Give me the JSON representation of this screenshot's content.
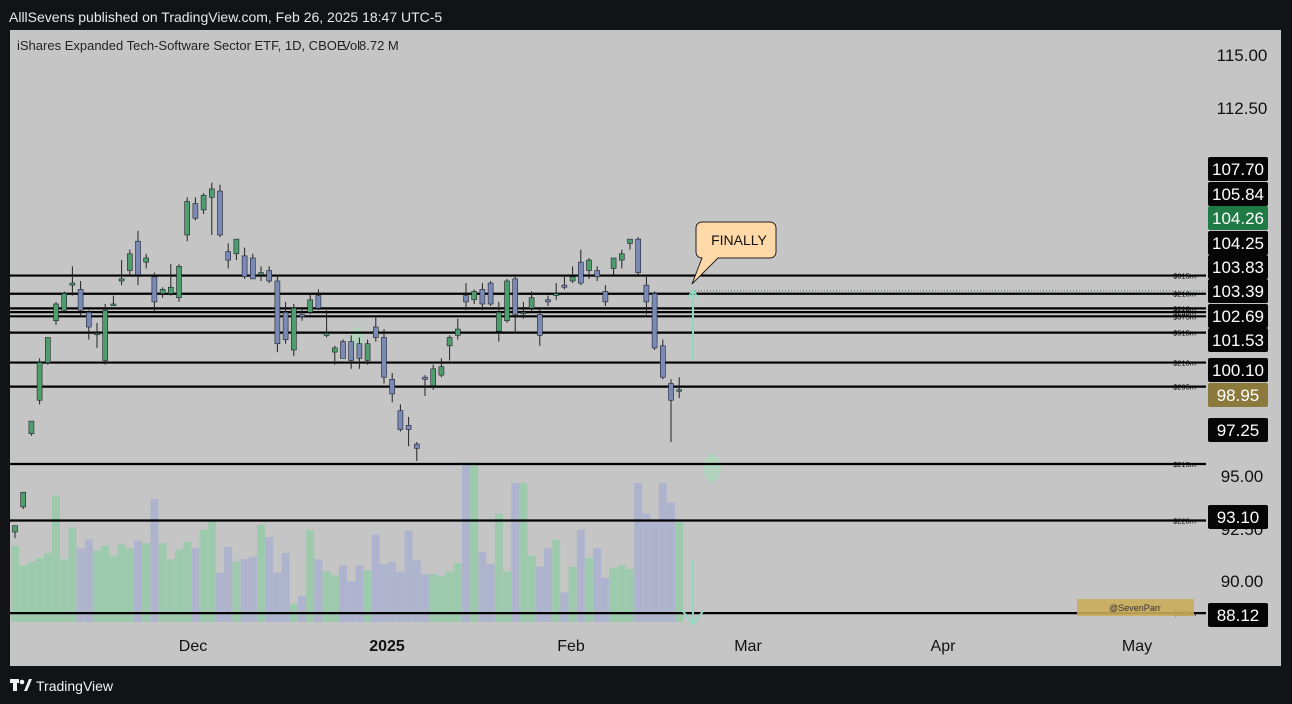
{
  "header": {
    "publish_line": "AlllSevens published on TradingView.com, Feb 26, 2025 18:47 UTC-5"
  },
  "footer": {
    "brand": "TradingView"
  },
  "chart_data": {
    "type": "candlestick",
    "title": "iShares Expanded Tech-Software Sector ETF, 1D, CBOE",
    "volume_label": "Vol",
    "volume_value": "8.72 M",
    "y_range": [
      87.6,
      116.0
    ],
    "x_tick_labels": [
      "Dec",
      "2025",
      "Feb",
      "Mar",
      "Apr",
      "May"
    ],
    "y_tick_labels": [
      "115.00",
      "112.50",
      "95.00",
      "92.50",
      "90.00"
    ],
    "candles": [
      {
        "o": 92.0,
        "h": 92.3,
        "l": 91.7,
        "c": 92.3
      },
      {
        "o": 93.2,
        "h": 93.9,
        "l": 93.1,
        "c": 93.9
      },
      {
        "o": 96.7,
        "h": 97.3,
        "l": 96.6,
        "c": 97.3
      },
      {
        "o": 98.3,
        "h": 100.3,
        "l": 98.1,
        "c": 100.1
      },
      {
        "o": 100.1,
        "h": 101.3,
        "l": 100.0,
        "c": 101.3
      },
      {
        "o": 102.1,
        "h": 103.0,
        "l": 101.9,
        "c": 102.9
      },
      {
        "o": 102.6,
        "h": 103.5,
        "l": 102.5,
        "c": 103.4
      },
      {
        "o": 103.8,
        "h": 104.7,
        "l": 103.3,
        "c": 103.9
      },
      {
        "o": 103.6,
        "h": 104.0,
        "l": 102.3,
        "c": 102.6
      },
      {
        "o": 102.5,
        "h": 102.6,
        "l": 101.2,
        "c": 101.8
      },
      {
        "o": 101.5,
        "h": 102.0,
        "l": 100.8,
        "c": 101.5
      },
      {
        "o": 100.2,
        "h": 102.9,
        "l": 100.0,
        "c": 102.6
      },
      {
        "o": 102.9,
        "h": 103.3,
        "l": 102.8,
        "c": 102.9
      },
      {
        "o": 104.0,
        "h": 105.0,
        "l": 103.8,
        "c": 104.1
      },
      {
        "o": 104.5,
        "h": 105.5,
        "l": 104.2,
        "c": 105.3
      },
      {
        "o": 105.9,
        "h": 106.4,
        "l": 103.8,
        "c": 104.3
      },
      {
        "o": 104.9,
        "h": 105.3,
        "l": 104.6,
        "c": 105.1
      },
      {
        "o": 104.2,
        "h": 104.4,
        "l": 102.5,
        "c": 103.0
      },
      {
        "o": 103.4,
        "h": 103.7,
        "l": 103.2,
        "c": 103.6
      },
      {
        "o": 103.4,
        "h": 104.8,
        "l": 103.3,
        "c": 103.7
      },
      {
        "o": 103.2,
        "h": 104.8,
        "l": 103.0,
        "c": 104.7
      },
      {
        "o": 106.2,
        "h": 108.0,
        "l": 105.9,
        "c": 107.8
      },
      {
        "o": 107.7,
        "h": 108.0,
        "l": 106.9,
        "c": 107.0
      },
      {
        "o": 107.4,
        "h": 108.2,
        "l": 107.2,
        "c": 108.1
      },
      {
        "o": 108.0,
        "h": 108.7,
        "l": 106.2,
        "c": 108.4
      },
      {
        "o": 108.3,
        "h": 108.6,
        "l": 106.1,
        "c": 106.2
      },
      {
        "o": 105.4,
        "h": 105.8,
        "l": 104.6,
        "c": 105.0
      },
      {
        "o": 105.3,
        "h": 106.0,
        "l": 105.0,
        "c": 106.0
      },
      {
        "o": 105.2,
        "h": 105.6,
        "l": 104.1,
        "c": 104.2
      },
      {
        "o": 105.1,
        "h": 105.3,
        "l": 104.1,
        "c": 104.1
      },
      {
        "o": 104.3,
        "h": 104.7,
        "l": 104.0,
        "c": 104.4
      },
      {
        "o": 104.5,
        "h": 104.7,
        "l": 103.9,
        "c": 104.0
      },
      {
        "o": 104.0,
        "h": 104.3,
        "l": 100.6,
        "c": 101.0
      },
      {
        "o": 102.5,
        "h": 103.0,
        "l": 101.0,
        "c": 101.2
      },
      {
        "o": 100.7,
        "h": 102.9,
        "l": 100.4,
        "c": 102.7
      },
      {
        "o": 102.4,
        "h": 102.7,
        "l": 102.1,
        "c": 102.3
      },
      {
        "o": 102.5,
        "h": 103.4,
        "l": 102.4,
        "c": 103.1
      },
      {
        "o": 103.3,
        "h": 103.6,
        "l": 102.6,
        "c": 102.7
      },
      {
        "o": 101.4,
        "h": 102.6,
        "l": 101.3,
        "c": 101.5
      },
      {
        "o": 100.6,
        "h": 100.9,
        "l": 100.0,
        "c": 100.8
      },
      {
        "o": 101.1,
        "h": 101.2,
        "l": 100.3,
        "c": 100.3
      },
      {
        "o": 101.1,
        "h": 101.4,
        "l": 99.8,
        "c": 100.2
      },
      {
        "o": 101.0,
        "h": 101.3,
        "l": 99.8,
        "c": 100.3
      },
      {
        "o": 100.2,
        "h": 101.2,
        "l": 100.0,
        "c": 101.0
      },
      {
        "o": 101.8,
        "h": 102.3,
        "l": 101.1,
        "c": 101.3
      },
      {
        "o": 101.3,
        "h": 101.7,
        "l": 99.1,
        "c": 99.4
      },
      {
        "o": 99.3,
        "h": 99.6,
        "l": 98.2,
        "c": 98.6
      },
      {
        "o": 97.8,
        "h": 98.1,
        "l": 96.8,
        "c": 96.9
      },
      {
        "o": 97.1,
        "h": 97.5,
        "l": 96.1,
        "c": 96.9
      },
      {
        "o": 96.2,
        "h": 96.3,
        "l": 95.4,
        "c": 96.0
      },
      {
        "o": 99.4,
        "h": 99.5,
        "l": 98.5,
        "c": 99.3
      },
      {
        "o": 99.0,
        "h": 100.0,
        "l": 98.8,
        "c": 99.8
      },
      {
        "o": 99.5,
        "h": 100.3,
        "l": 99.4,
        "c": 99.9
      },
      {
        "o": 100.9,
        "h": 101.4,
        "l": 100.2,
        "c": 101.3
      },
      {
        "o": 101.4,
        "h": 102.2,
        "l": 101.2,
        "c": 101.7
      },
      {
        "o": 103.3,
        "h": 103.9,
        "l": 102.6,
        "c": 103.0
      },
      {
        "o": 103.1,
        "h": 103.6,
        "l": 102.9,
        "c": 103.5
      },
      {
        "o": 103.6,
        "h": 103.9,
        "l": 102.6,
        "c": 102.9
      },
      {
        "o": 103.9,
        "h": 104.0,
        "l": 102.8,
        "c": 102.9
      },
      {
        "o": 101.6,
        "h": 103.0,
        "l": 101.1,
        "c": 102.5
      },
      {
        "o": 102.1,
        "h": 104.1,
        "l": 102.0,
        "c": 104.0
      },
      {
        "o": 104.1,
        "h": 104.2,
        "l": 101.5,
        "c": 102.4
      },
      {
        "o": 102.5,
        "h": 103.0,
        "l": 102.2,
        "c": 102.5
      },
      {
        "o": 102.7,
        "h": 103.5,
        "l": 102.5,
        "c": 103.2
      },
      {
        "o": 102.4,
        "h": 102.7,
        "l": 100.9,
        "c": 101.4
      },
      {
        "o": 103.1,
        "h": 103.3,
        "l": 102.8,
        "c": 103.0
      },
      {
        "o": 103.3,
        "h": 103.9,
        "l": 103.1,
        "c": 103.4
      },
      {
        "o": 103.8,
        "h": 104.3,
        "l": 103.6,
        "c": 103.7
      },
      {
        "o": 104.0,
        "h": 104.7,
        "l": 103.9,
        "c": 104.2
      },
      {
        "o": 104.9,
        "h": 105.5,
        "l": 103.8,
        "c": 103.9
      },
      {
        "o": 104.5,
        "h": 105.1,
        "l": 104.1,
        "c": 105.0
      },
      {
        "o": 104.5,
        "h": 104.7,
        "l": 104.0,
        "c": 104.2
      },
      {
        "o": 103.5,
        "h": 103.8,
        "l": 102.8,
        "c": 103.0
      },
      {
        "o": 104.6,
        "h": 105.1,
        "l": 104.3,
        "c": 105.1
      },
      {
        "o": 105.0,
        "h": 105.5,
        "l": 104.6,
        "c": 105.3
      },
      {
        "o": 105.8,
        "h": 106.0,
        "l": 105.5,
        "c": 106.0
      },
      {
        "o": 106.0,
        "h": 106.1,
        "l": 104.3,
        "c": 104.4
      },
      {
        "o": 103.8,
        "h": 104.2,
        "l": 102.4,
        "c": 103.0
      },
      {
        "o": 103.4,
        "h": 103.5,
        "l": 100.7,
        "c": 100.8
      },
      {
        "o": 100.9,
        "h": 101.2,
        "l": 99.3,
        "c": 99.4
      },
      {
        "o": 99.1,
        "h": 99.3,
        "l": 96.3,
        "c": 98.3
      },
      {
        "o": 98.8,
        "h": 99.4,
        "l": 98.4,
        "c": 98.8
      }
    ],
    "volumes": [
      6.2,
      4.6,
      4.9,
      5.2,
      5.6,
      10.3,
      5.1,
      7.7,
      6.0,
      6.7,
      5.8,
      6.2,
      5.4,
      6.3,
      6.0,
      6.6,
      6.4,
      10.0,
      6.4,
      5.1,
      5.9,
      6.5,
      6.0,
      7.5,
      8.3,
      4.0,
      6.1,
      4.9,
      5.1,
      5.3,
      7.9,
      6.9,
      4.0,
      5.6,
      1.5,
      2.1,
      7.5,
      5.1,
      4.1,
      3.8,
      4.6,
      3.3,
      4.6,
      4.2,
      7.1,
      4.7,
      4.9,
      4.1,
      7.4,
      5.0,
      3.9,
      3.9,
      3.7,
      4.1,
      4.8,
      13.0,
      13.0,
      5.7,
      4.7,
      8.8,
      4.1,
      11.3,
      11.3,
      5.4,
      4.5,
      6.0,
      6.7,
      2.4,
      4.5,
      7.5,
      5.2,
      6.0,
      3.6,
      4.4,
      4.6,
      4.3,
      11.3,
      8.8,
      8.3,
      11.3,
      9.7,
      8.1
    ],
    "volume_max": 13.0,
    "horizontal_levels": [
      {
        "price": 104.26,
        "label": "$315m"
      },
      {
        "price": 103.39,
        "label": "$210m"
      },
      {
        "price": 102.69,
        "label": "$210m"
      },
      {
        "price": 102.51,
        "label": "$295m"
      },
      {
        "price": 102.31,
        "label": "$375m"
      },
      {
        "price": 101.53,
        "label": "$515m"
      },
      {
        "price": 100.1,
        "label": "$210m"
      },
      {
        "price": 98.95,
        "label": "$205m"
      },
      {
        "price": 95.25,
        "label": "$215m"
      },
      {
        "price": 92.55,
        "label": "$220m"
      },
      {
        "price": 88.12,
        "label": "$330m"
      }
    ],
    "price_labels": [
      {
        "text": "107.70",
        "style": "black"
      },
      {
        "text": "105.84",
        "style": "black"
      },
      {
        "text": "104.26",
        "style": "green"
      },
      {
        "text": "104.25",
        "style": "black"
      },
      {
        "text": "103.83",
        "style": "black"
      },
      {
        "text": "103.39",
        "style": "black"
      },
      {
        "text": "102.69",
        "style": "black"
      },
      {
        "text": "101.53",
        "style": "black"
      },
      {
        "text": "100.10",
        "style": "black"
      },
      {
        "text": "98.95",
        "style": "gold"
      },
      {
        "text": "97.25",
        "style": "black"
      },
      {
        "text": "93.10",
        "style": "black"
      },
      {
        "text": "88.12",
        "style": "black"
      }
    ],
    "annotation": "FINALLY",
    "watermark": "@SevenParr",
    "colors": {
      "background": "#c5c5c5",
      "up": "#4e9d6c",
      "down": "#7b89b5",
      "wick": "#222222",
      "level_line": "#000000",
      "volume_up": "#8fcaa3",
      "volume_down": "#a7aed0",
      "highlight": "#a9d8b9",
      "callout": "#ffd9a8",
      "tag_black": "#050505",
      "tag_green": "#1f7a45",
      "tag_gold": "#8c7a3c"
    }
  }
}
